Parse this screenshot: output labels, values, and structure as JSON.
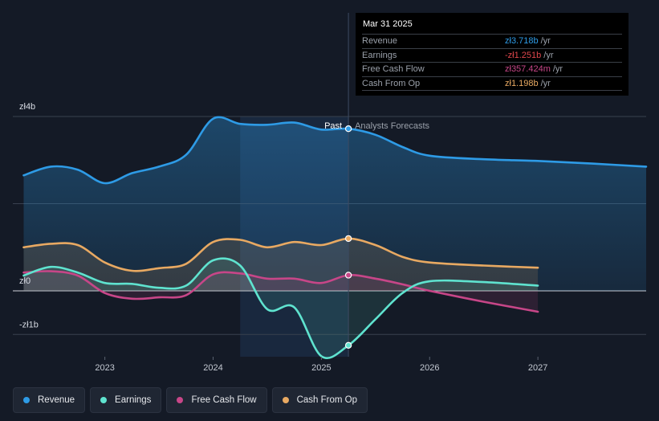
{
  "colors": {
    "revenue": "#2e9be6",
    "earnings": "#5fe3cf",
    "free_cash_flow": "#c74688",
    "cash_from_op": "#e8a962",
    "background": "#141a26",
    "tooltip_bg": "#000000"
  },
  "tooltip": {
    "date": "Mar 31 2025",
    "rows": [
      {
        "label": "Revenue",
        "value": "zł3.718b",
        "unit": "/yr",
        "color": "#2e9be6"
      },
      {
        "label": "Earnings",
        "value": "-zł1.251b",
        "unit": "/yr",
        "color": "#e0474c"
      },
      {
        "label": "Free Cash Flow",
        "value": "zł357.424m",
        "unit": "/yr",
        "color": "#c74688"
      },
      {
        "label": "Cash From Op",
        "value": "zł1.198b",
        "unit": "/yr",
        "color": "#e8a962"
      }
    ]
  },
  "markers": {
    "past": "Past",
    "forecast": "Analysts Forecasts"
  },
  "legend": [
    {
      "label": "Revenue",
      "color": "#2e9be6"
    },
    {
      "label": "Earnings",
      "color": "#5fe3cf"
    },
    {
      "label": "Free Cash Flow",
      "color": "#c74688"
    },
    {
      "label": "Cash From Op",
      "color": "#e8a962"
    }
  ],
  "chart_data": {
    "type": "line",
    "title": "",
    "xlabel": "",
    "ylabel": "",
    "y_unit": "PLN billions",
    "xlim": [
      2022.15,
      2028.0
    ],
    "ylim": [
      -1.0,
      4.0
    ],
    "x_ticks": [
      2023,
      2024,
      2025,
      2026,
      2027
    ],
    "x_tick_labels": [
      "2023",
      "2024",
      "2025",
      "2026",
      "2027"
    ],
    "y_ticks": [
      -1,
      0,
      4
    ],
    "y_tick_labels": [
      "-zł1b",
      "zł0",
      "zł4b"
    ],
    "past_forecast_divider_x": 2025.25,
    "shaded_past_region_start_x": 2024.25,
    "series": [
      {
        "name": "Revenue",
        "key": "revenue",
        "x": [
          2022.25,
          2022.5,
          2022.75,
          2023.0,
          2023.25,
          2023.5,
          2023.75,
          2024.0,
          2024.25,
          2024.5,
          2024.75,
          2025.0,
          2025.25,
          2025.5,
          2025.75,
          2026.0,
          2026.5,
          2027.0,
          2027.5,
          2028.0
        ],
        "values": [
          2.65,
          2.85,
          2.78,
          2.47,
          2.7,
          2.85,
          3.12,
          3.95,
          3.83,
          3.81,
          3.86,
          3.7,
          3.72,
          3.58,
          3.3,
          3.1,
          3.02,
          2.98,
          2.92,
          2.85
        ]
      },
      {
        "name": "Earnings",
        "key": "earnings",
        "x": [
          2022.25,
          2022.5,
          2022.75,
          2023.0,
          2023.25,
          2023.5,
          2023.75,
          2024.0,
          2024.25,
          2024.5,
          2024.75,
          2025.0,
          2025.25,
          2025.5,
          2025.75,
          2026.0,
          2026.5,
          2027.0
        ],
        "values": [
          0.35,
          0.55,
          0.42,
          0.18,
          0.16,
          0.07,
          0.12,
          0.7,
          0.58,
          -0.42,
          -0.38,
          -1.5,
          -1.25,
          -0.65,
          -0.05,
          0.22,
          0.2,
          0.12
        ]
      },
      {
        "name": "Free Cash Flow",
        "key": "free_cash_flow",
        "x": [
          2022.25,
          2022.5,
          2022.75,
          2023.0,
          2023.25,
          2023.5,
          2023.75,
          2024.0,
          2024.25,
          2024.5,
          2024.75,
          2025.0,
          2025.25,
          2025.5,
          2025.75,
          2026.0,
          2026.5,
          2027.0
        ],
        "values": [
          0.42,
          0.45,
          0.35,
          -0.05,
          -0.18,
          -0.15,
          -0.1,
          0.38,
          0.4,
          0.28,
          0.28,
          0.18,
          0.36,
          0.28,
          0.15,
          0.0,
          -0.25,
          -0.48
        ]
      },
      {
        "name": "Cash From Op",
        "key": "cash_from_op",
        "x": [
          2022.25,
          2022.5,
          2022.75,
          2023.0,
          2023.25,
          2023.5,
          2023.75,
          2024.0,
          2024.25,
          2024.5,
          2024.75,
          2025.0,
          2025.25,
          2025.5,
          2025.75,
          2026.0,
          2026.5,
          2027.0
        ],
        "values": [
          1.0,
          1.08,
          1.05,
          0.65,
          0.46,
          0.52,
          0.62,
          1.12,
          1.17,
          1.0,
          1.12,
          1.05,
          1.2,
          1.05,
          0.78,
          0.65,
          0.58,
          0.53
        ]
      }
    ]
  }
}
